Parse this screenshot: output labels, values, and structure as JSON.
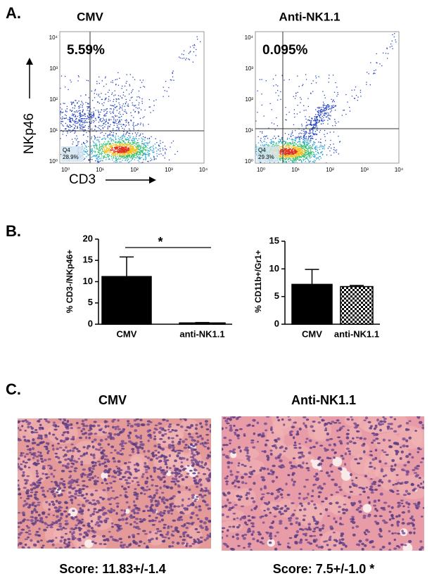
{
  "panel_a": {
    "label": "A.",
    "y_axis_label": "NKp46",
    "x_axis_label": "CD3",
    "ticks": [
      "10⁰",
      "10¹",
      "10²",
      "10³",
      "10⁴"
    ],
    "plots": [
      {
        "title": "CMV",
        "percent": "5.59%",
        "gate": "Q4",
        "gate_percent": "28.9%"
      },
      {
        "title": "Anti-NK1.1",
        "percent": "0.095%",
        "gate": "Q4",
        "gate_percent": "29.3%"
      }
    ]
  },
  "panel_b_label": "B.",
  "chart_data": [
    {
      "type": "bar",
      "ylabel": "% CD3-/NKp46+",
      "categories": [
        "CMV",
        "anti-NK1.1"
      ],
      "values": [
        11.2,
        0.3
      ],
      "errors": [
        4.6,
        0.1
      ],
      "fills": [
        "#000000",
        "#000000"
      ],
      "ylim": [
        0,
        20
      ],
      "yticks": [
        0,
        5,
        10,
        15,
        20
      ],
      "annotation": "*"
    },
    {
      "type": "bar",
      "ylabel": "% CD11b+/Gr1+",
      "categories": [
        "CMV",
        "anti-NK1.1"
      ],
      "values": [
        7.2,
        6.8
      ],
      "errors": [
        2.7,
        0.2
      ],
      "fills": [
        "#000000",
        "checker"
      ],
      "ylim": [
        0,
        15
      ],
      "yticks": [
        0,
        5,
        10,
        15
      ]
    }
  ],
  "panel_c": {
    "label": "C.",
    "images": [
      {
        "title": "CMV",
        "score": "Score: 11.83+/-1.4"
      },
      {
        "title": "Anti-NK1.1",
        "score": "Score: 7.5+/-1.0 *"
      }
    ]
  }
}
